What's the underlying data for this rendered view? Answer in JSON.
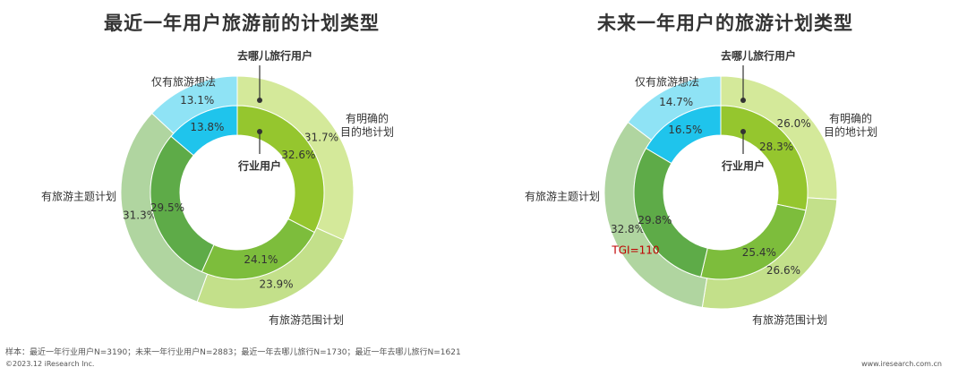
{
  "colors": {
    "outer_planned": "#d4e99a",
    "inner_planned": "#95c62e",
    "outer_range": "#c3e08a",
    "inner_range": "#7dbd3c",
    "outer_theme": "#b0d5a0",
    "inner_theme": "#5eab48",
    "outer_idea": "#8fe3f5",
    "inner_idea": "#1fc4ec",
    "tgi": "#c00000"
  },
  "center_label": "行业用户",
  "outer_label": "去哪儿旅行用户",
  "chart_data": [
    {
      "type": "donut",
      "title": "最近一年用户旅游前的计划类型",
      "categories": [
        "有明确的目的地计划",
        "有旅游范围计划",
        "有旅游主题计划",
        "仅有旅游想法"
      ],
      "category_labels": [
        [
          "有明确的",
          "目的地计划"
        ],
        [
          "有旅游范围计划"
        ],
        [
          "有旅游主题计划"
        ],
        [
          "仅有旅游想法"
        ]
      ],
      "series": [
        {
          "name": "去哪儿旅行用户",
          "ring": "outer",
          "values": [
            31.7,
            23.9,
            31.3,
            13.1
          ],
          "labels": [
            "31.7%",
            "23.9%",
            "31.3%",
            "13.1%"
          ]
        },
        {
          "name": "行业用户",
          "ring": "inner",
          "values": [
            32.6,
            24.1,
            29.5,
            13.8
          ],
          "labels": [
            "32.6%",
            "24.1%",
            "29.5%",
            "13.8%"
          ]
        }
      ]
    },
    {
      "type": "donut",
      "title": "未来一年用户的旅游计划类型",
      "categories": [
        "有明确的目的地计划",
        "有旅游范围计划",
        "有旅游主题计划",
        "仅有旅游想法"
      ],
      "category_labels": [
        [
          "有明确的",
          "目的地计划"
        ],
        [
          "有旅游范围计划"
        ],
        [
          "有旅游主题计划"
        ],
        [
          "仅有旅游想法"
        ]
      ],
      "series": [
        {
          "name": "去哪儿旅行用户",
          "ring": "outer",
          "values": [
            26.0,
            26.6,
            32.8,
            14.7
          ],
          "labels": [
            "26.0%",
            "26.6%",
            "32.8%",
            "14.7%"
          ]
        },
        {
          "name": "行业用户",
          "ring": "inner",
          "values": [
            28.3,
            25.4,
            29.8,
            16.5
          ],
          "labels": [
            "28.3%",
            "25.4%",
            "29.8%",
            "16.5%"
          ]
        }
      ],
      "annotation": {
        "text": "TGI=110",
        "category": "有旅游主题计划"
      }
    }
  ],
  "footer": {
    "sample": "样本：最近一年行业用户N=3190；未来一年行业用户N=2883；最近一年去哪儿旅行N=1730；最近一年去哪儿旅行N=1621",
    "copyright": "©2023.12 iResearch Inc.",
    "url": "www.iresearch.com.cn"
  }
}
